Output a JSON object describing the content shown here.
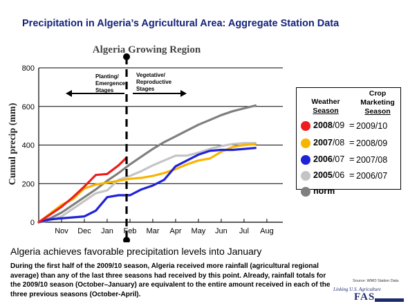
{
  "page_title": "Precipitation in Algeria’s Agricultural Area: Aggregate Station Data",
  "legend": {
    "weather_header": [
      "Weather",
      "Season"
    ],
    "crop_header": [
      "Crop",
      "Marketing",
      "Season"
    ],
    "rows": [
      {
        "season_bold": "2008",
        "season_rest": "/09",
        "crop": "2009/10",
        "color": "#ee1c1c"
      },
      {
        "season_bold": "2007",
        "season_rest": "/08",
        "crop": "2008/09",
        "color": "#f8b500"
      },
      {
        "season_bold": "2006",
        "season_rest": "/07",
        "crop": "2007/08",
        "color": "#1f22d6"
      },
      {
        "season_bold": "2005",
        "season_rest": "/06",
        "crop": "2006/07",
        "color": "#c4c4c4"
      },
      {
        "season_bold": "norm",
        "season_rest": "",
        "crop": "",
        "color": "#7f7f7f"
      }
    ]
  },
  "headline": "Algeria achieves favorable precipitation levels into January",
  "body": "During the first half of the 2009/10 season, Algeria received more rainfall (agricultural regional average) than any of the last three seasons had received by this point.  Already, rainfall totals for the 2009/10 season (October–January) are equivalent  to the entire amount received in each of the three previous seasons (October-April).",
  "source": "Source: WMO Station Data",
  "logo": {
    "tagline": "Linking U.S. Agriculture",
    "name": "FAS"
  },
  "chart_data": {
    "type": "line",
    "title": "Algeria Growing Region",
    "xlabel": "",
    "ylabel": "Cumul precip (mm)",
    "x_tick_labels": [
      "Nov",
      "Dec",
      "Jan",
      "Feb",
      "Mar",
      "Apr",
      "May",
      "Jun",
      "Jul",
      "Aug"
    ],
    "x_tick_months": [
      1,
      2,
      3,
      4,
      5,
      6,
      7,
      8,
      9,
      10
    ],
    "xlim": [
      0,
      10.7
    ],
    "ylim": [
      0,
      800
    ],
    "y_ticks": [
      0,
      200,
      400,
      600,
      800
    ],
    "grid": "horizontal",
    "marker_month": 3.85,
    "stage_labels": {
      "left": [
        "Planting/",
        "Emergence",
        "Stages"
      ],
      "right": [
        "Vegetative/",
        "Reproductive",
        "Stages"
      ]
    },
    "series": [
      {
        "name": "norm",
        "color": "#7f7f7f",
        "x": [
          0,
          0.5,
          1,
          1.5,
          2,
          2.5,
          3,
          3.5,
          4,
          4.5,
          5,
          5.5,
          6,
          6.5,
          7,
          7.5,
          8,
          8.5,
          9,
          9.5
        ],
        "y": [
          0,
          20,
          50,
          90,
          130,
          170,
          215,
          255,
          300,
          340,
          380,
          415,
          445,
          475,
          505,
          530,
          555,
          575,
          590,
          605
        ]
      },
      {
        "name": "2005/06",
        "color": "#c4c4c4",
        "x": [
          0,
          0.5,
          1,
          1.5,
          2,
          2.5,
          3,
          3.5,
          4,
          4.5,
          5,
          5.5,
          6,
          6.5,
          7,
          7.5,
          8,
          8.5,
          9,
          9.5
        ],
        "y": [
          0,
          10,
          30,
          70,
          110,
          150,
          165,
          220,
          240,
          265,
          295,
          320,
          345,
          345,
          360,
          380,
          395,
          405,
          410,
          410
        ]
      },
      {
        "name": "2007/08",
        "color": "#f8b500",
        "x": [
          0,
          0.5,
          1,
          1.5,
          2,
          2.5,
          3,
          3.5,
          4,
          4.5,
          5,
          5.5,
          6,
          6.5,
          7,
          7.5,
          8,
          8.5,
          9,
          9.5
        ],
        "y": [
          0,
          45,
          90,
          120,
          175,
          195,
          205,
          215,
          225,
          230,
          240,
          255,
          275,
          300,
          320,
          330,
          365,
          390,
          400,
          405
        ]
      },
      {
        "name": "2006/07",
        "color": "#1f22d6",
        "x": [
          0,
          0.5,
          1,
          1.5,
          2,
          2.5,
          3,
          3.5,
          4,
          4.5,
          5,
          5.5,
          6,
          6.5,
          7,
          7.5,
          8,
          8.5,
          9,
          9.5
        ],
        "y": [
          0,
          15,
          20,
          25,
          30,
          60,
          130,
          140,
          140,
          170,
          190,
          220,
          290,
          320,
          350,
          370,
          375,
          375,
          380,
          385
        ]
      },
      {
        "name": "2008/09",
        "color": "#ee1c1c",
        "x": [
          0,
          0.5,
          1,
          1.5,
          2,
          2.5,
          3,
          3.5,
          3.85
        ],
        "y": [
          0,
          40,
          80,
          130,
          185,
          245,
          250,
          295,
          335
        ]
      }
    ]
  }
}
